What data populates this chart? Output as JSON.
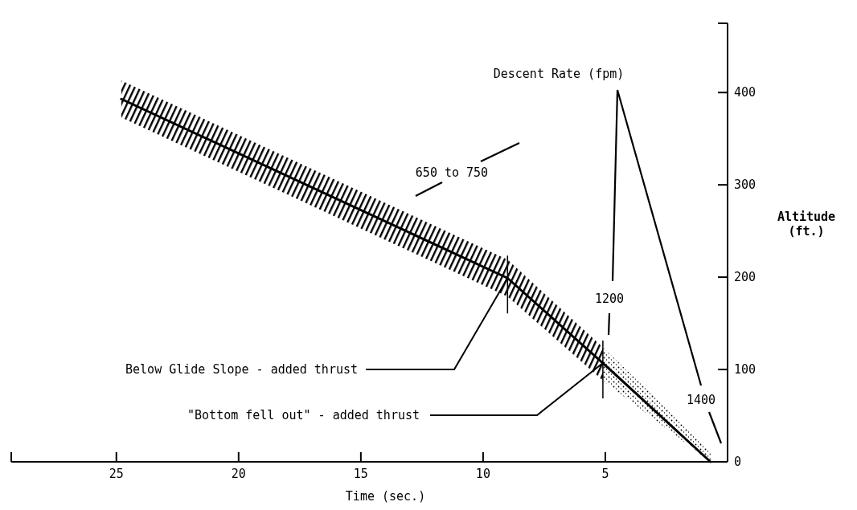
{
  "chart_data": {
    "type": "line",
    "xlabel": "Time (sec.)",
    "ylabel": "Altitude (ft.)",
    "xlim": [
      29.3,
      0
    ],
    "xticks": [
      25,
      20,
      15,
      10,
      5
    ],
    "ylim": [
      0,
      475
    ],
    "yticks": [
      0,
      100,
      200,
      300,
      400
    ],
    "series": [
      {
        "color": "#000000",
        "x": [
          24.8,
          9.0,
          5.1,
          0.7
        ],
        "values": [
          393,
          199,
          107,
          0
        ],
        "lower": [
          373,
          179,
          88,
          0
        ],
        "upper": [
          413,
          219,
          124,
          12
        ]
      }
    ],
    "annotations": [
      "Descent Rate (fpm)",
      "650 to 750",
      "1200",
      "1400",
      {
        "text": "Below Glide Slope - added thrust",
        "x": 9.0,
        "y": 199
      },
      {
        "text": "\"Bottom fell out\" - added thrust",
        "x": 5.1,
        "y": 107
      }
    ],
    "grid": false,
    "marker": "none",
    "line_style": "solid"
  }
}
